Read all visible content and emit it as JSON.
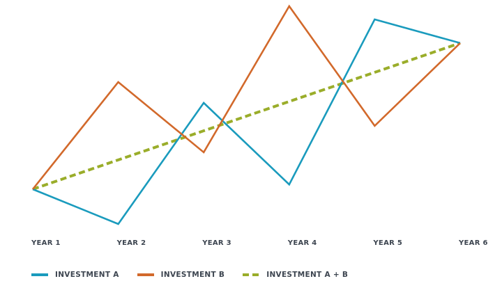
{
  "chart_data": {
    "type": "line",
    "title": "",
    "xlabel": "",
    "ylabel": "",
    "categories": [
      "YEAR 1",
      "YEAR 2",
      "YEAR 3",
      "YEAR 4",
      "YEAR 5",
      "YEAR 6"
    ],
    "ylim": [
      0,
      100
    ],
    "grid": false,
    "y_axis_visible": false,
    "legend_position": "bottom-left",
    "series": [
      {
        "name": "INVESTMENT A",
        "color": "#1a9bbd",
        "style": "solid",
        "values": [
          20,
          5.3,
          56.5,
          22,
          91.8,
          81.8
        ]
      },
      {
        "name": "INVESTMENT B",
        "color": "#d2692b",
        "style": "solid",
        "values": [
          20,
          65.3,
          35.6,
          97.4,
          46.8,
          81.8
        ]
      },
      {
        "name": "INVESTMENT A + B",
        "color": "#9aad2a",
        "style": "dashed",
        "values": [
          20,
          32.4,
          44.7,
          57.1,
          69.4,
          81.8
        ]
      }
    ]
  }
}
